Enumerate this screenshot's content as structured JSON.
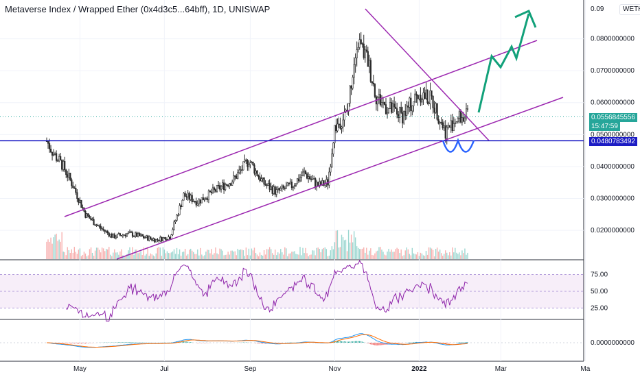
{
  "header": {
    "title": "Metaverse Index / Wrapped Ether (0x4d3c5...64bff), 1D, UNISWAP",
    "currency_badge": "WETH"
  },
  "price_axis": {
    "ticks": [
      "0.0800000000",
      "0.0700000000",
      "0.0600000000",
      "0.0500000000",
      "0.0400000000",
      "0.0300000000",
      "0.0200000000"
    ],
    "ymax_partial": "0.09",
    "current_price": "0.0556845556",
    "countdown": "15:47:59",
    "support_price": "0.0480783492"
  },
  "rsi_axis": {
    "ticks": [
      "75.00",
      "50.00",
      "25.00"
    ]
  },
  "macd_axis": {
    "ticks": [
      "0.0000000000"
    ]
  },
  "time_axis": {
    "labels": [
      "May",
      "Jul",
      "Sep",
      "Nov",
      "2022",
      "Mar",
      "Ma"
    ]
  },
  "colors": {
    "up": "#26a69a",
    "down": "#ef5350",
    "candle_body": "#2b2b2b",
    "channel": "#9c27b0",
    "support": "#1c1cc4",
    "arrow": "#12a17a",
    "rsi": "#8e24aa",
    "macd": "#2196f3",
    "signal": "#ff6d00"
  },
  "chart_data": {
    "type": "candlestick",
    "title": "Metaverse Index / Wrapped Ether (0x4d3c5...64bff), 1D, UNISWAP",
    "y_range": [
      0.011,
      0.09
    ],
    "x_labels": [
      "May",
      "Jul",
      "Sep",
      "Nov",
      "2022",
      "Mar",
      "Ma"
    ],
    "close_series": [
      {
        "date": "2021-04-07",
        "close": 0.048
      },
      {
        "date": "2021-04-12",
        "close": 0.044
      },
      {
        "date": "2021-04-19",
        "close": 0.04
      },
      {
        "date": "2021-04-26",
        "close": 0.034
      },
      {
        "date": "2021-05-05",
        "close": 0.025
      },
      {
        "date": "2021-05-15",
        "close": 0.021
      },
      {
        "date": "2021-05-25",
        "close": 0.018
      },
      {
        "date": "2021-06-05",
        "close": 0.019
      },
      {
        "date": "2021-06-15",
        "close": 0.018
      },
      {
        "date": "2021-06-25",
        "close": 0.017
      },
      {
        "date": "2021-07-05",
        "close": 0.018
      },
      {
        "date": "2021-07-15",
        "close": 0.031
      },
      {
        "date": "2021-07-25",
        "close": 0.029
      },
      {
        "date": "2021-08-05",
        "close": 0.032
      },
      {
        "date": "2021-08-20",
        "close": 0.036
      },
      {
        "date": "2021-08-31",
        "close": 0.042
      },
      {
        "date": "2021-09-10",
        "close": 0.035
      },
      {
        "date": "2021-09-20",
        "close": 0.032
      },
      {
        "date": "2021-10-01",
        "close": 0.034
      },
      {
        "date": "2021-10-10",
        "close": 0.038
      },
      {
        "date": "2021-10-20",
        "close": 0.034
      },
      {
        "date": "2021-10-27",
        "close": 0.035
      },
      {
        "date": "2021-11-01",
        "close": 0.052
      },
      {
        "date": "2021-11-10",
        "close": 0.057
      },
      {
        "date": "2021-11-17",
        "close": 0.08
      },
      {
        "date": "2021-11-25",
        "close": 0.073
      },
      {
        "date": "2021-12-01",
        "close": 0.062
      },
      {
        "date": "2021-12-10",
        "close": 0.058
      },
      {
        "date": "2021-12-20",
        "close": 0.056
      },
      {
        "date": "2022-01-01",
        "close": 0.063
      },
      {
        "date": "2022-01-10",
        "close": 0.061
      },
      {
        "date": "2022-01-20",
        "close": 0.051
      },
      {
        "date": "2022-01-28",
        "close": 0.055
      },
      {
        "date": "2022-02-05",
        "close": 0.0557
      }
    ],
    "current_price": 0.0556845556,
    "support_level": 0.0480783492,
    "rsi": {
      "levels": [
        75,
        50,
        25
      ]
    },
    "macd": {
      "zero_line": 0
    }
  }
}
